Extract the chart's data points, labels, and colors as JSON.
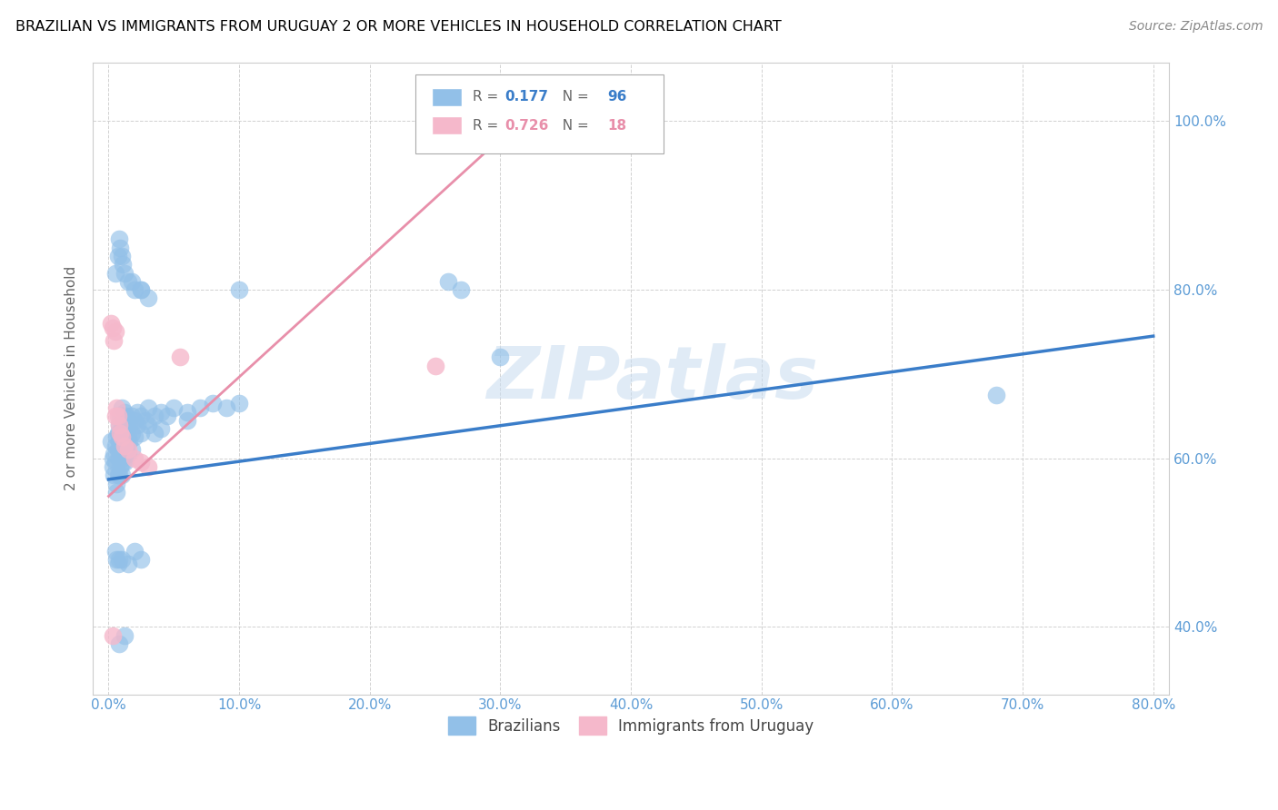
{
  "title": "BRAZILIAN VS IMMIGRANTS FROM URUGUAY 2 OR MORE VEHICLES IN HOUSEHOLD CORRELATION CHART",
  "source": "Source: ZipAtlas.com",
  "ylabel": "2 or more Vehicles in Household",
  "R1": 0.177,
  "N1": 96,
  "R2": 0.726,
  "N2": 18,
  "blue_color": "#92C0E8",
  "pink_color": "#F5B8CB",
  "blue_line_color": "#3A7DC9",
  "pink_line_color": "#E88FAA",
  "tick_color": "#5B9BD5",
  "watermark": "ZIPatlas",
  "legend_label1": "Brazilians",
  "legend_label2": "Immigrants from Uruguay",
  "blue_points": [
    [
      0.002,
      0.62
    ],
    [
      0.003,
      0.6
    ],
    [
      0.003,
      0.59
    ],
    [
      0.004,
      0.605
    ],
    [
      0.004,
      0.58
    ],
    [
      0.005,
      0.615
    ],
    [
      0.005,
      0.595
    ],
    [
      0.006,
      0.625
    ],
    [
      0.006,
      0.57
    ],
    [
      0.006,
      0.56
    ],
    [
      0.007,
      0.63
    ],
    [
      0.007,
      0.61
    ],
    [
      0.007,
      0.58
    ],
    [
      0.008,
      0.64
    ],
    [
      0.008,
      0.62
    ],
    [
      0.008,
      0.6
    ],
    [
      0.008,
      0.58
    ],
    [
      0.009,
      0.65
    ],
    [
      0.009,
      0.63
    ],
    [
      0.009,
      0.61
    ],
    [
      0.009,
      0.59
    ],
    [
      0.01,
      0.66
    ],
    [
      0.01,
      0.64
    ],
    [
      0.01,
      0.62
    ],
    [
      0.01,
      0.6
    ],
    [
      0.01,
      0.58
    ],
    [
      0.011,
      0.65
    ],
    [
      0.011,
      0.635
    ],
    [
      0.011,
      0.615
    ],
    [
      0.011,
      0.595
    ],
    [
      0.012,
      0.655
    ],
    [
      0.012,
      0.635
    ],
    [
      0.012,
      0.615
    ],
    [
      0.012,
      0.595
    ],
    [
      0.013,
      0.65
    ],
    [
      0.013,
      0.63
    ],
    [
      0.013,
      0.61
    ],
    [
      0.014,
      0.64
    ],
    [
      0.014,
      0.62
    ],
    [
      0.015,
      0.645
    ],
    [
      0.015,
      0.625
    ],
    [
      0.015,
      0.605
    ],
    [
      0.016,
      0.64
    ],
    [
      0.016,
      0.62
    ],
    [
      0.018,
      0.65
    ],
    [
      0.018,
      0.63
    ],
    [
      0.018,
      0.61
    ],
    [
      0.02,
      0.645
    ],
    [
      0.02,
      0.625
    ],
    [
      0.022,
      0.64
    ],
    [
      0.022,
      0.655
    ],
    [
      0.025,
      0.65
    ],
    [
      0.025,
      0.63
    ],
    [
      0.028,
      0.645
    ],
    [
      0.03,
      0.64
    ],
    [
      0.03,
      0.66
    ],
    [
      0.035,
      0.65
    ],
    [
      0.035,
      0.63
    ],
    [
      0.04,
      0.655
    ],
    [
      0.04,
      0.635
    ],
    [
      0.045,
      0.65
    ],
    [
      0.05,
      0.66
    ],
    [
      0.06,
      0.655
    ],
    [
      0.06,
      0.645
    ],
    [
      0.07,
      0.66
    ],
    [
      0.08,
      0.665
    ],
    [
      0.09,
      0.66
    ],
    [
      0.1,
      0.665
    ],
    [
      0.005,
      0.82
    ],
    [
      0.007,
      0.84
    ],
    [
      0.008,
      0.86
    ],
    [
      0.009,
      0.85
    ],
    [
      0.01,
      0.84
    ],
    [
      0.011,
      0.83
    ],
    [
      0.012,
      0.82
    ],
    [
      0.015,
      0.81
    ],
    [
      0.018,
      0.81
    ],
    [
      0.02,
      0.8
    ],
    [
      0.025,
      0.8
    ],
    [
      0.03,
      0.79
    ],
    [
      0.005,
      0.49
    ],
    [
      0.006,
      0.48
    ],
    [
      0.007,
      0.475
    ],
    [
      0.008,
      0.48
    ],
    [
      0.01,
      0.48
    ],
    [
      0.015,
      0.475
    ],
    [
      0.02,
      0.49
    ],
    [
      0.025,
      0.48
    ],
    [
      0.008,
      0.38
    ],
    [
      0.012,
      0.39
    ],
    [
      0.025,
      0.8
    ],
    [
      0.27,
      0.8
    ],
    [
      0.26,
      0.81
    ],
    [
      0.68,
      0.675
    ],
    [
      0.1,
      0.8
    ],
    [
      0.3,
      0.72
    ]
  ],
  "pink_points": [
    [
      0.002,
      0.76
    ],
    [
      0.003,
      0.755
    ],
    [
      0.004,
      0.74
    ],
    [
      0.005,
      0.75
    ],
    [
      0.005,
      0.65
    ],
    [
      0.006,
      0.66
    ],
    [
      0.007,
      0.65
    ],
    [
      0.008,
      0.64
    ],
    [
      0.009,
      0.63
    ],
    [
      0.01,
      0.625
    ],
    [
      0.012,
      0.615
    ],
    [
      0.015,
      0.61
    ],
    [
      0.02,
      0.6
    ],
    [
      0.025,
      0.595
    ],
    [
      0.03,
      0.59
    ],
    [
      0.055,
      0.72
    ],
    [
      0.003,
      0.39
    ],
    [
      0.25,
      0.71
    ]
  ],
  "blue_reg": [
    0.0,
    0.8,
    0.575,
    0.745
  ],
  "pink_reg": [
    0.0,
    0.35,
    0.555,
    1.05
  ]
}
